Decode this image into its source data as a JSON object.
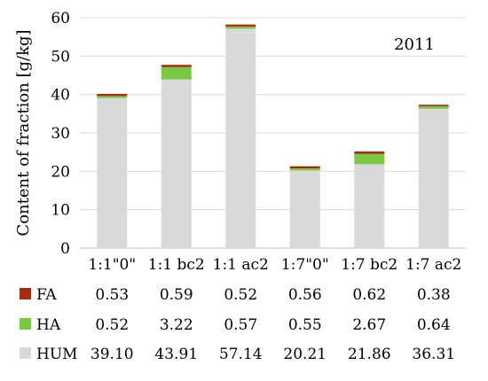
{
  "chart_data": {
    "type": "bar",
    "stacked": true,
    "categories": [
      "1:1\"0\"",
      "1:1 bc2",
      "1:1 ac2",
      "1:7\"0\"",
      "1:7 bc2",
      "1:7 ac2"
    ],
    "series": [
      {
        "name": "HUM",
        "values": [
          39.1,
          43.91,
          57.14,
          20.21,
          21.86,
          36.31
        ],
        "color": "#d9d9d9"
      },
      {
        "name": "HA",
        "values": [
          0.52,
          3.22,
          0.57,
          0.55,
          2.67,
          0.64
        ],
        "color": "#7ac943"
      },
      {
        "name": "FA",
        "values": [
          0.53,
          0.59,
          0.52,
          0.56,
          0.62,
          0.38
        ],
        "color": "#a52a0f"
      }
    ],
    "table_rows": [
      {
        "label": "FA",
        "cells": [
          "0.53",
          "0.59",
          "0.52",
          "0.56",
          "0.62",
          "0.38"
        ]
      },
      {
        "label": "HA",
        "cells": [
          "0.52",
          "3.22",
          "0.57",
          "0.55",
          "2.67",
          "0.64"
        ]
      },
      {
        "label": "HUM",
        "cells": [
          "39.10",
          "43.91",
          "57.14",
          "20.21",
          "21.86",
          "36.31"
        ]
      }
    ],
    "ylabel": "Content of fraction [g/kg]",
    "annotation": "2011",
    "ylim": [
      0,
      60
    ],
    "yticks": [
      0,
      10,
      20,
      30,
      40,
      50,
      60
    ],
    "grid": "horizontal",
    "legend": "data-table-left"
  }
}
